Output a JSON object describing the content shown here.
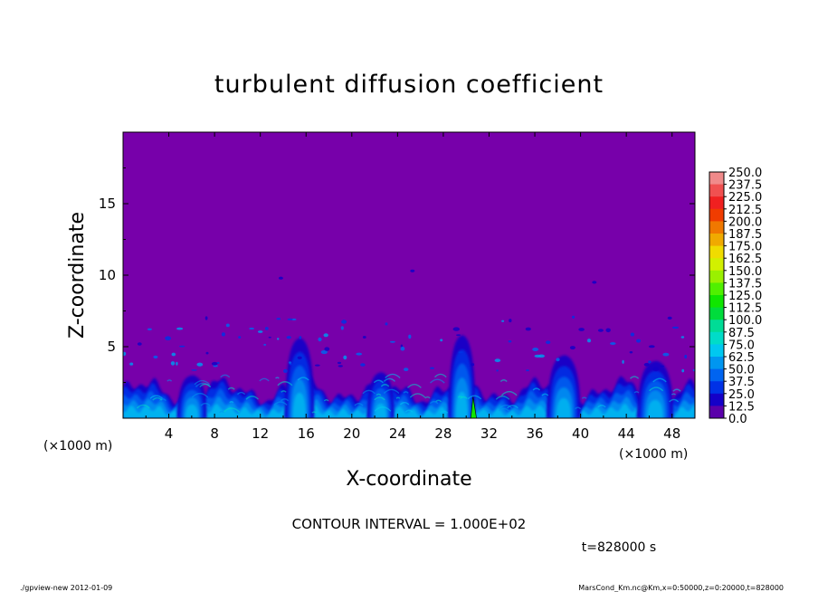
{
  "chart_data": {
    "type": "heatmap",
    "title": "turbulent diffusion coefficient",
    "xlabel": "X-coordinate",
    "ylabel": "Z-coordinate",
    "x_unit": "(×1000 m)",
    "y_unit": "(×1000 m)",
    "xlim": [
      0,
      50
    ],
    "ylim": [
      0,
      20
    ],
    "x_ticks": [
      4,
      8,
      12,
      16,
      20,
      24,
      28,
      32,
      36,
      40,
      44,
      48
    ],
    "y_ticks": [
      5,
      10,
      15
    ],
    "colorbar": {
      "levels": [
        250.0,
        237.5,
        225.0,
        212.5,
        200.0,
        187.5,
        175.0,
        162.5,
        150.0,
        137.5,
        125.0,
        112.5,
        100.0,
        87.5,
        75.0,
        62.5,
        50.0,
        37.5,
        25.0,
        12.5,
        0.0
      ],
      "labels": [
        "250.0",
        "237.5",
        "225.0",
        "212.5",
        "200.0",
        "187.5",
        "175.0",
        "162.5",
        "150.0",
        "137.5",
        "125.0",
        "112.5",
        "100.0",
        "87.5",
        "75.0",
        "62.5",
        "50.0",
        "37.5",
        "25.0",
        "12.5",
        "0.0"
      ],
      "colors": [
        "#f08a8a",
        "#f05050",
        "#f02020",
        "#f03c00",
        "#f07800",
        "#f0aa00",
        "#f0dc00",
        "#d2f000",
        "#9af000",
        "#50f000",
        "#10e600",
        "#00dc3c",
        "#00dc96",
        "#00dcc8",
        "#00c8f0",
        "#0096f0",
        "#0064f0",
        "#0032e6",
        "#1400c8",
        "#5a00aa"
      ]
    },
    "background_color": "#7700aa",
    "contour_interval_text": "CONTOUR INTERVAL = 1.000E+02",
    "time_text": "t=828000 s",
    "footer_left": "./gpview-new  2012-01-09",
    "footer_right": "MarsCond_Km.nc@Km,x=0:50000,z=0:20000,t=828000"
  }
}
